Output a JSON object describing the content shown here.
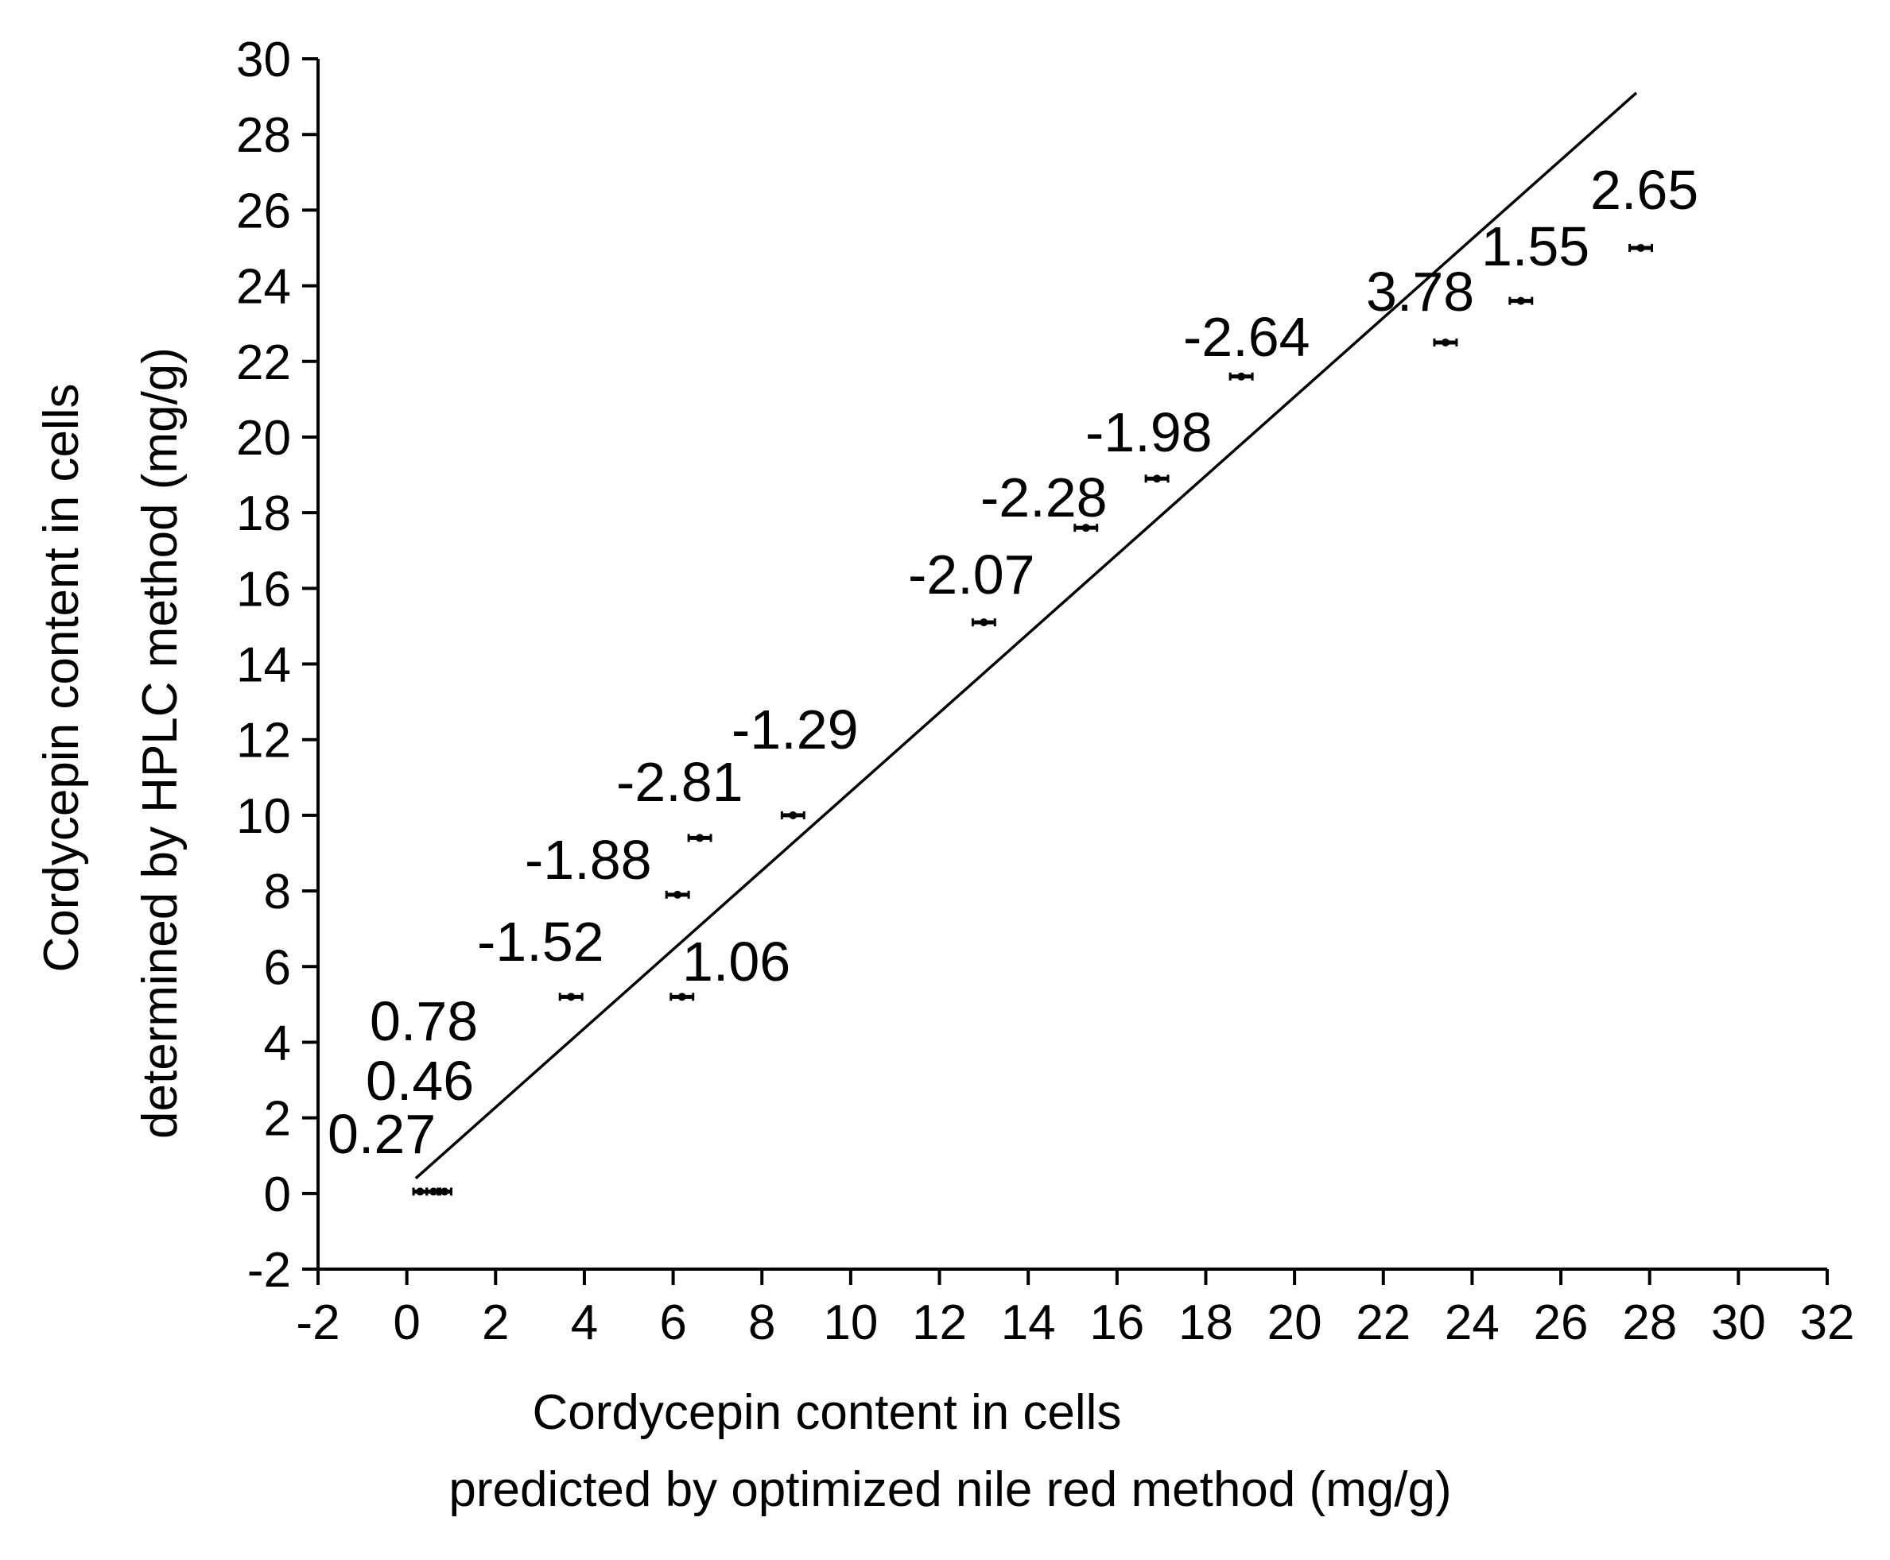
{
  "chart_data": {
    "type": "scatter",
    "title": "",
    "xlabel": [
      "Cordycepin content in cells",
      "predicted by optimized nile red method (mg/g)"
    ],
    "ylabel": [
      "Cordycepin content in cells",
      "determined by HPLC method (mg/g)"
    ],
    "xlim": [
      -2,
      32
    ],
    "ylim": [
      -2,
      30
    ],
    "xticks": [
      -2,
      0,
      2,
      4,
      6,
      8,
      10,
      12,
      14,
      16,
      18,
      20,
      22,
      24,
      26,
      28,
      30,
      32
    ],
    "yticks": [
      -2,
      0,
      2,
      4,
      6,
      8,
      10,
      12,
      14,
      16,
      18,
      20,
      22,
      24,
      26,
      28,
      30
    ],
    "grid": false,
    "points": [
      {
        "x": 0.3,
        "y": 0.05,
        "xerr": 0.15,
        "label": "0.27"
      },
      {
        "x": 0.6,
        "y": 0.05,
        "xerr": 0.15,
        "label": "0.46"
      },
      {
        "x": 0.85,
        "y": 0.05,
        "xerr": 0.15,
        "label": "0.78"
      },
      {
        "x": 3.7,
        "y": 5.2,
        "xerr": 0.25,
        "label": "-1.52"
      },
      {
        "x": 6.2,
        "y": 5.2,
        "xerr": 0.25,
        "label": "1.06"
      },
      {
        "x": 6.1,
        "y": 7.9,
        "xerr": 0.25,
        "label": "-1.88"
      },
      {
        "x": 6.6,
        "y": 9.4,
        "xerr": 0.25,
        "label": "-2.81"
      },
      {
        "x": 8.7,
        "y": 10.0,
        "xerr": 0.25,
        "label": "-1.29"
      },
      {
        "x": 13.0,
        "y": 15.1,
        "xerr": 0.25,
        "label": "-2.07"
      },
      {
        "x": 15.3,
        "y": 17.6,
        "xerr": 0.25,
        "label": "-2.28"
      },
      {
        "x": 16.9,
        "y": 18.9,
        "xerr": 0.25,
        "label": "-1.98"
      },
      {
        "x": 18.8,
        "y": 21.6,
        "xerr": 0.25,
        "label": "-2.64"
      },
      {
        "x": 23.4,
        "y": 22.5,
        "xerr": 0.25,
        "label": "3.78"
      },
      {
        "x": 25.1,
        "y": 23.6,
        "xerr": 0.25,
        "label": "1.55"
      },
      {
        "x": 27.8,
        "y": 25.0,
        "xerr": 0.25,
        "label": "2.65"
      }
    ],
    "trendline": {
      "x": [
        0.2,
        27.7
      ],
      "y": [
        0.4,
        29.1
      ]
    },
    "colors": {
      "foreground": "#000000",
      "background": "#ffffff"
    }
  }
}
